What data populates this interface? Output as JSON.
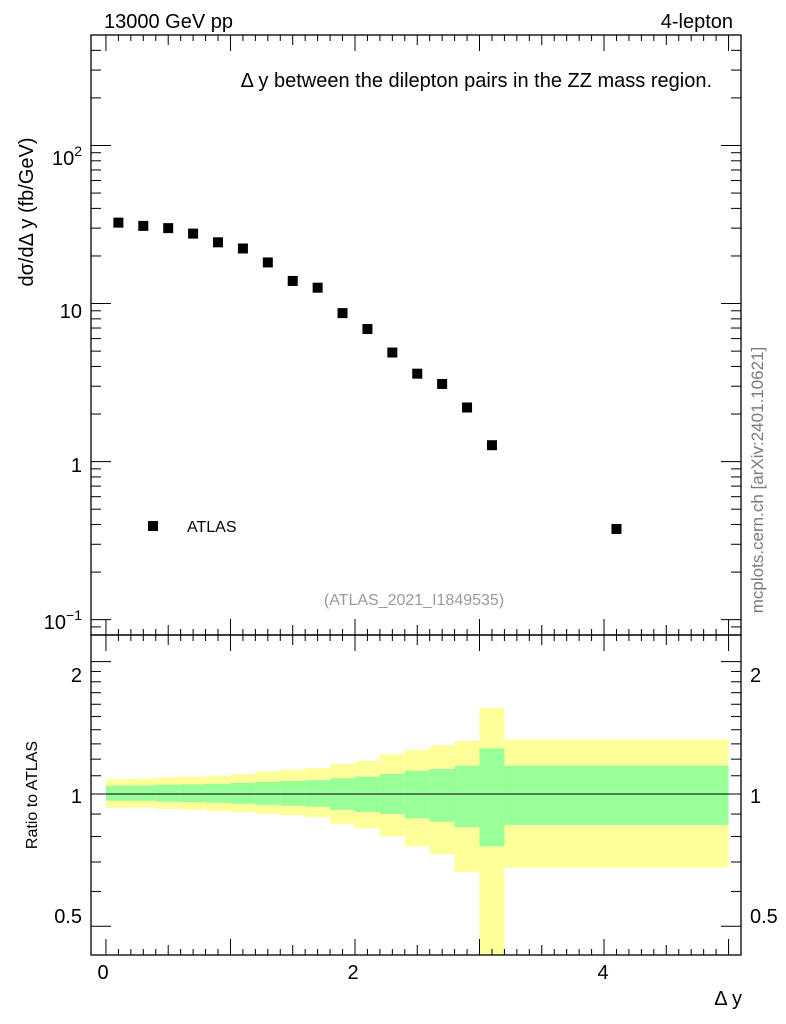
{
  "header": {
    "left": "13000 GeV pp",
    "right": "4-lepton"
  },
  "side_label": "mcplots.cern.ch [arXiv:2401.10621]",
  "chart_data": [
    {
      "type": "scatter",
      "title": "Δ y between the dilepton pairs in the ZZ mass region.",
      "ylabel": "dσ/dΔ y (fb/GeV)",
      "yscale": "log",
      "ylim": [
        0.08,
        500
      ],
      "xlim": [
        -0.12,
        5.1
      ],
      "ytick_labels": [
        {
          "value": 0.1,
          "base": "10",
          "exp": "−1"
        },
        {
          "value": 1,
          "base": "1",
          "exp": ""
        },
        {
          "value": 10,
          "base": "10",
          "exp": ""
        },
        {
          "value": 100,
          "base": "10",
          "exp": "2"
        }
      ],
      "legend": [
        {
          "label": "ATLAS",
          "marker": "square"
        }
      ],
      "watermark": "(ATLAS_2021_I1849535)",
      "series": [
        {
          "name": "ATLAS",
          "x": [
            0.1,
            0.3,
            0.5,
            0.7,
            0.9,
            1.1,
            1.3,
            1.5,
            1.7,
            1.9,
            2.1,
            2.3,
            2.5,
            2.7,
            2.9,
            3.1,
            4.1
          ],
          "y": [
            32.5,
            31.0,
            30.0,
            27.7,
            24.4,
            22.3,
            18.2,
            13.9,
            12.6,
            8.7,
            6.9,
            4.9,
            3.6,
            3.1,
            2.2,
            1.27,
            0.375
          ]
        }
      ]
    },
    {
      "type": "area",
      "ylabel": "Ratio to ATLAS",
      "xlabel": "Δ y",
      "ylim": [
        0.43,
        2.3
      ],
      "xlim": [
        -0.12,
        5.1
      ],
      "ytick_labels": [
        "0.5",
        "1",
        "2"
      ],
      "xtick_labels": [
        "0",
        "2",
        "4"
      ],
      "bins": [
        [
          0.0,
          0.2
        ],
        [
          0.2,
          0.4
        ],
        [
          0.4,
          0.6
        ],
        [
          0.6,
          0.8
        ],
        [
          0.8,
          1.0
        ],
        [
          1.0,
          1.2
        ],
        [
          1.2,
          1.4
        ],
        [
          1.4,
          1.6
        ],
        [
          1.6,
          1.8
        ],
        [
          1.8,
          2.0
        ],
        [
          2.0,
          2.2
        ],
        [
          2.2,
          2.4
        ],
        [
          2.4,
          2.6
        ],
        [
          2.6,
          2.8
        ],
        [
          2.8,
          3.0
        ],
        [
          3.0,
          3.2
        ],
        [
          3.2,
          5.0
        ]
      ],
      "band_outer": {
        "color": "#ffff99",
        "lower": [
          0.93,
          0.93,
          0.925,
          0.92,
          0.915,
          0.91,
          0.9,
          0.895,
          0.885,
          0.855,
          0.835,
          0.8,
          0.76,
          0.73,
          0.665,
          0.43,
          0.68
        ],
        "upper": [
          1.08,
          1.085,
          1.09,
          1.095,
          1.1,
          1.11,
          1.125,
          1.135,
          1.145,
          1.17,
          1.19,
          1.23,
          1.26,
          1.29,
          1.32,
          1.57,
          1.33
        ]
      },
      "band_inner": {
        "color": "#99ff99",
        "lower": [
          0.965,
          0.965,
          0.96,
          0.958,
          0.955,
          0.95,
          0.945,
          0.94,
          0.935,
          0.92,
          0.91,
          0.9,
          0.88,
          0.865,
          0.84,
          0.76,
          0.85
        ],
        "upper": [
          1.045,
          1.045,
          1.05,
          1.052,
          1.055,
          1.06,
          1.065,
          1.07,
          1.075,
          1.085,
          1.095,
          1.11,
          1.13,
          1.14,
          1.16,
          1.27,
          1.16
        ]
      },
      "reference_line": 1
    }
  ]
}
